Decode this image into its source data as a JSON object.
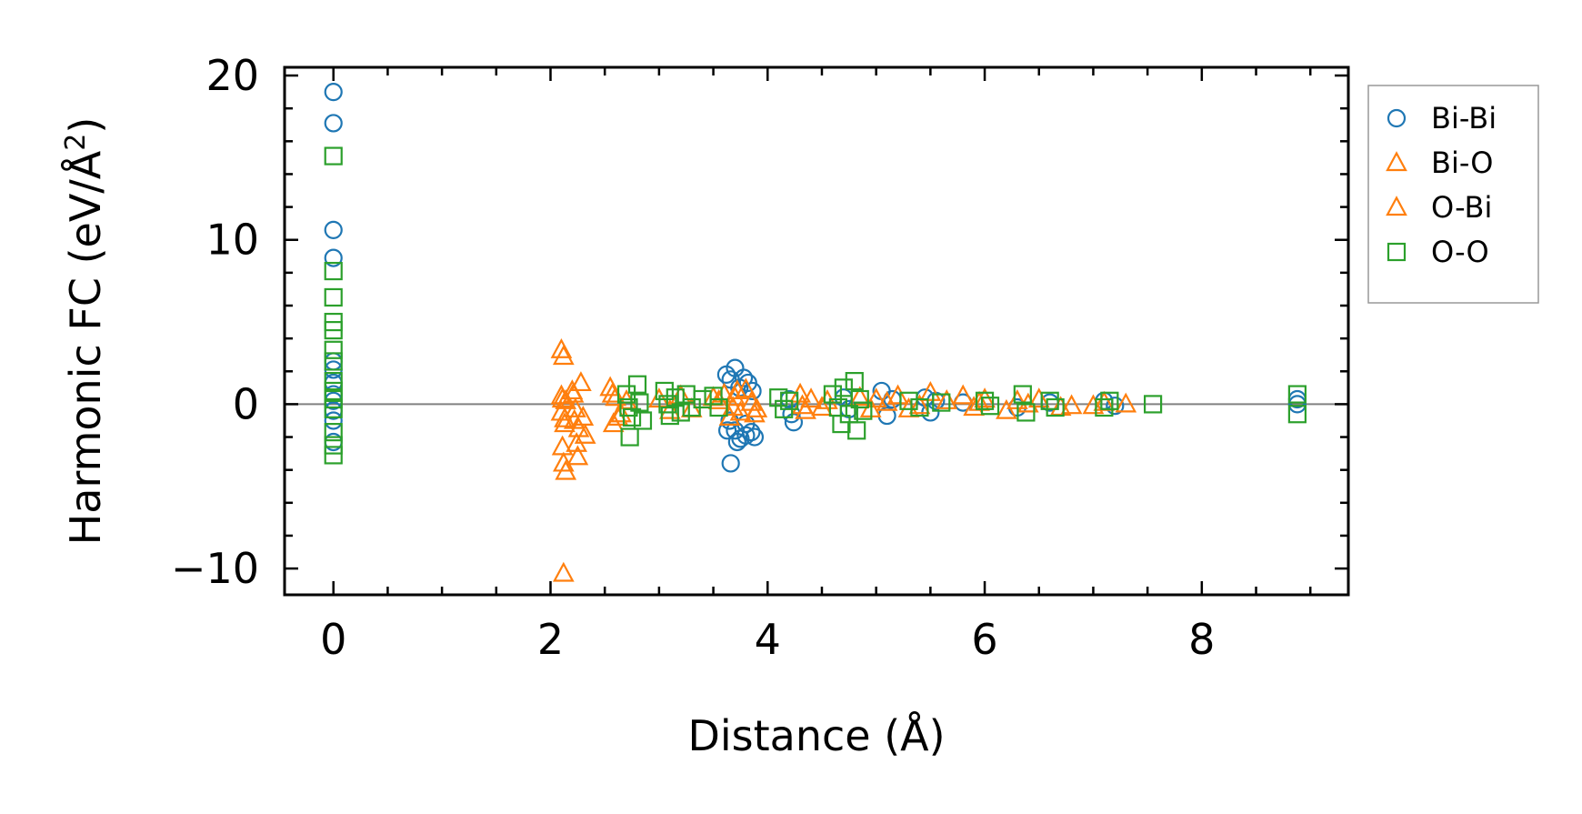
{
  "chart_data": {
    "type": "scatter",
    "xlabel": "Distance (Å)",
    "ylabel_main": "Harmonic FC (eV/Å",
    "ylabel_sup": "2",
    "ylabel_close": ")",
    "xlim": [
      -0.45,
      9.35
    ],
    "ylim": [
      -11.6,
      20.5
    ],
    "xticks": [
      0,
      2,
      4,
      6,
      8
    ],
    "xtick_labels": [
      "0",
      "2",
      "4",
      "6",
      "8"
    ],
    "yticks": [
      -10,
      0,
      10,
      20
    ],
    "ytick_labels": [
      "−10",
      "0",
      "10",
      "20"
    ],
    "x_minor_step": 0.5,
    "y_minor_step": 2,
    "zero_line": true,
    "legend_position": "outside-right",
    "series": [
      {
        "name": "Bi-Bi",
        "marker": "circle",
        "color": "#1f77b4",
        "points": [
          [
            0,
            19.0
          ],
          [
            0,
            17.1
          ],
          [
            0,
            10.6
          ],
          [
            0,
            8.9
          ],
          [
            0,
            2.6
          ],
          [
            0,
            2.1
          ],
          [
            0,
            1.3
          ],
          [
            0,
            0.6
          ],
          [
            0,
            0.2
          ],
          [
            0,
            -0.4
          ],
          [
            0,
            -1.0
          ],
          [
            0,
            -2.3
          ],
          [
            3.62,
            1.8
          ],
          [
            3.66,
            1.5
          ],
          [
            3.7,
            2.2
          ],
          [
            3.74,
            1.0
          ],
          [
            3.78,
            1.6
          ],
          [
            3.82,
            1.3
          ],
          [
            3.86,
            0.8
          ],
          [
            3.65,
            -1.0
          ],
          [
            3.7,
            -1.6
          ],
          [
            3.75,
            -2.1
          ],
          [
            3.8,
            -1.9
          ],
          [
            3.85,
            -1.7
          ],
          [
            3.88,
            -2.0
          ],
          [
            3.63,
            -1.6
          ],
          [
            3.66,
            -3.6
          ],
          [
            3.72,
            -2.3
          ],
          [
            3.8,
            -1.2
          ],
          [
            4.2,
            0.3
          ],
          [
            4.22,
            -0.6
          ],
          [
            4.24,
            -1.1
          ],
          [
            4.7,
            0.4
          ],
          [
            4.75,
            -0.3
          ],
          [
            5.05,
            0.8
          ],
          [
            5.1,
            -0.7
          ],
          [
            5.15,
            0.3
          ],
          [
            5.45,
            0.4
          ],
          [
            5.5,
            -0.5
          ],
          [
            5.55,
            0.2
          ],
          [
            5.8,
            0.1
          ],
          [
            6.3,
            -0.2
          ],
          [
            6.6,
            0.1
          ],
          [
            7.1,
            0.2
          ],
          [
            7.2,
            -0.1
          ],
          [
            8.88,
            0.3
          ],
          [
            8.88,
            0.0
          ]
        ]
      },
      {
        "name": "Bi-O",
        "marker": "triangle",
        "color": "#ff7f0e",
        "points": [
          [
            2.1,
            3.3
          ],
          [
            2.12,
            2.9
          ],
          [
            2.1,
            0.5
          ],
          [
            2.14,
            0.2
          ],
          [
            2.1,
            -0.5
          ],
          [
            2.13,
            -1.2
          ],
          [
            2.11,
            -2.6
          ],
          [
            2.12,
            -3.6
          ],
          [
            2.14,
            -4.1
          ],
          [
            2.12,
            -10.3
          ],
          [
            2.2,
            0.8
          ],
          [
            2.22,
            -1.0
          ],
          [
            2.24,
            -2.4
          ],
          [
            2.26,
            -1.5
          ],
          [
            2.28,
            1.3
          ],
          [
            2.3,
            -0.8
          ],
          [
            2.32,
            -1.9
          ],
          [
            2.25,
            -3.2
          ],
          [
            2.55,
            1.0
          ],
          [
            2.58,
            -1.2
          ],
          [
            2.6,
            0.4
          ],
          [
            2.65,
            -0.6
          ],
          [
            2.7,
            0.2
          ],
          [
            3.0,
            0.3
          ],
          [
            3.1,
            -0.4
          ],
          [
            3.2,
            0.5
          ],
          [
            3.3,
            -0.3
          ],
          [
            3.5,
            0.4
          ],
          [
            3.6,
            0.6
          ],
          [
            3.65,
            -0.8
          ],
          [
            3.7,
            0.4
          ],
          [
            3.75,
            -0.5
          ],
          [
            3.8,
            0.9
          ],
          [
            3.85,
            0.1
          ],
          [
            3.9,
            -0.3
          ],
          [
            4.3,
            0.6
          ],
          [
            4.35,
            -0.4
          ],
          [
            4.4,
            0.3
          ],
          [
            4.5,
            -0.2
          ],
          [
            4.85,
            0.4
          ],
          [
            4.95,
            -0.3
          ],
          [
            5.0,
            0.3
          ],
          [
            5.2,
            0.5
          ],
          [
            5.3,
            -0.3
          ],
          [
            5.5,
            0.7
          ],
          [
            5.65,
            0.2
          ],
          [
            5.8,
            0.5
          ],
          [
            5.9,
            -0.2
          ],
          [
            6.0,
            0.3
          ],
          [
            6.2,
            -0.4
          ],
          [
            6.3,
            0.2
          ],
          [
            6.5,
            0.3
          ],
          [
            6.7,
            -0.2
          ],
          [
            7.0,
            -0.1
          ],
          [
            7.3,
            0.0
          ]
        ]
      },
      {
        "name": "O-Bi",
        "marker": "triangle",
        "color": "#ff7f0e",
        "points": [
          [
            2.11,
            0.3
          ],
          [
            2.13,
            -0.9
          ],
          [
            2.21,
            0.6
          ],
          [
            2.23,
            -0.3
          ],
          [
            2.57,
            0.6
          ],
          [
            2.62,
            -0.8
          ],
          [
            3.55,
            0.2
          ],
          [
            3.68,
            -0.2
          ],
          [
            3.72,
            0.8
          ],
          [
            3.88,
            -0.6
          ],
          [
            4.32,
            -0.1
          ],
          [
            4.55,
            0.2
          ],
          [
            5.1,
            0.1
          ],
          [
            5.4,
            -0.1
          ],
          [
            5.95,
            0.1
          ],
          [
            6.4,
            0.0
          ],
          [
            6.8,
            -0.1
          ],
          [
            7.1,
            0.1
          ]
        ]
      },
      {
        "name": "O-O",
        "marker": "square",
        "color": "#2ca02c",
        "points": [
          [
            0,
            15.1
          ],
          [
            0,
            8.1
          ],
          [
            0,
            6.5
          ],
          [
            0,
            5.0
          ],
          [
            0,
            4.5
          ],
          [
            0,
            3.3
          ],
          [
            0,
            2.6
          ],
          [
            0,
            1.4
          ],
          [
            0,
            0.8
          ],
          [
            0,
            0.3
          ],
          [
            0,
            -0.3
          ],
          [
            0,
            -1.7
          ],
          [
            0,
            -2.5
          ],
          [
            0,
            -3.1
          ],
          [
            2.7,
            0.6
          ],
          [
            2.72,
            -0.2
          ],
          [
            2.75,
            -0.8
          ],
          [
            2.73,
            -2.0
          ],
          [
            2.8,
            1.2
          ],
          [
            2.82,
            0.1
          ],
          [
            2.85,
            -1.0
          ],
          [
            3.05,
            0.8
          ],
          [
            3.08,
            0.0
          ],
          [
            3.1,
            -0.7
          ],
          [
            3.15,
            0.4
          ],
          [
            3.2,
            -0.5
          ],
          [
            3.25,
            0.6
          ],
          [
            3.3,
            -0.2
          ],
          [
            3.4,
            0.3
          ],
          [
            3.5,
            0.5
          ],
          [
            3.55,
            -0.2
          ],
          [
            4.1,
            0.4
          ],
          [
            4.15,
            -0.3
          ],
          [
            4.2,
            0.2
          ],
          [
            4.6,
            0.6
          ],
          [
            4.65,
            -0.2
          ],
          [
            4.68,
            -1.2
          ],
          [
            4.7,
            1.0
          ],
          [
            4.75,
            -0.6
          ],
          [
            4.8,
            1.4
          ],
          [
            4.82,
            -1.6
          ],
          [
            4.85,
            0.3
          ],
          [
            4.88,
            -0.4
          ],
          [
            5.3,
            0.2
          ],
          [
            5.4,
            -0.2
          ],
          [
            5.6,
            0.1
          ],
          [
            6.0,
            0.2
          ],
          [
            6.05,
            -0.1
          ],
          [
            6.35,
            0.6
          ],
          [
            6.38,
            -0.5
          ],
          [
            6.6,
            0.2
          ],
          [
            6.65,
            -0.2
          ],
          [
            7.1,
            -0.2
          ],
          [
            7.15,
            0.2
          ],
          [
            7.55,
            0.0
          ],
          [
            8.88,
            0.6
          ],
          [
            8.88,
            -0.6
          ]
        ]
      }
    ]
  }
}
